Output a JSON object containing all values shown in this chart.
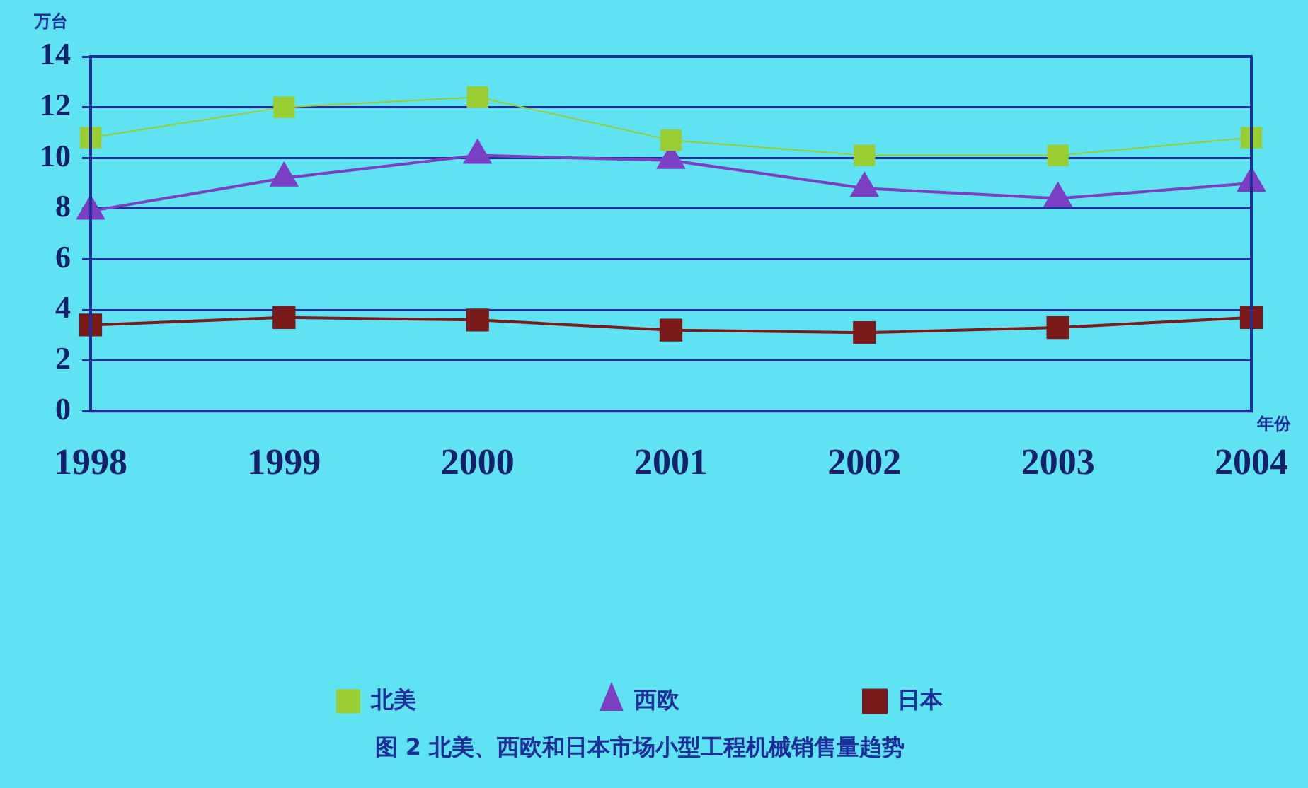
{
  "chart_data": {
    "type": "line",
    "title": "图 2 北美、西欧和日本市场小型工程机械销售量趋势",
    "ylabel": "万台",
    "xlabel": "年份",
    "categories": [
      "1998",
      "1999",
      "2000",
      "2001",
      "2002",
      "2003",
      "2004"
    ],
    "series": [
      {
        "name": "北美",
        "color": "#9acd32",
        "marker": "square",
        "values": [
          10.8,
          12.0,
          12.4,
          10.7,
          10.1,
          10.1,
          10.8
        ]
      },
      {
        "name": "西欧",
        "color": "#7b3fc4",
        "marker": "triangle",
        "values": [
          7.9,
          9.2,
          10.1,
          9.9,
          8.8,
          8.4,
          9.0
        ]
      },
      {
        "name": "日本",
        "color": "#7a1a1a",
        "marker": "square",
        "values": [
          3.4,
          3.7,
          3.6,
          3.2,
          3.1,
          3.3,
          3.7
        ]
      }
    ],
    "ylim": [
      0,
      14
    ],
    "yticks": [
      0,
      2,
      4,
      6,
      8,
      10,
      12,
      14
    ],
    "grid": "y",
    "legend": "bottom",
    "line_style": "solid"
  }
}
